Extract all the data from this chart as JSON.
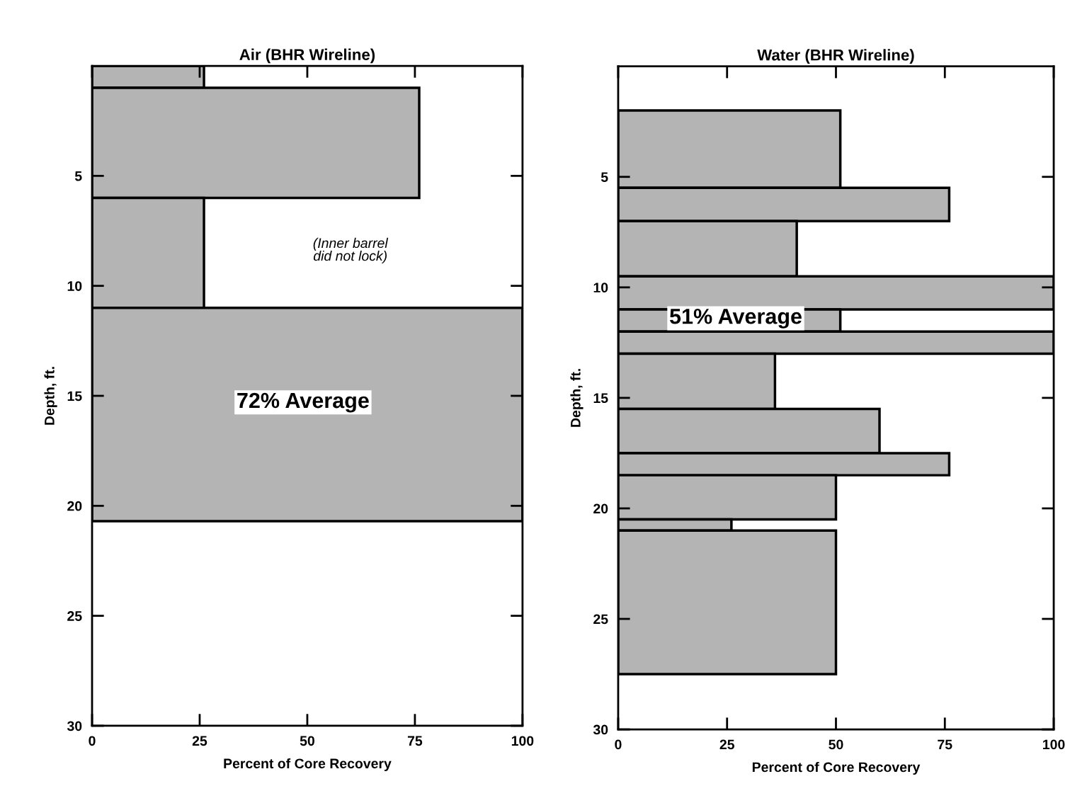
{
  "chart_data": [
    {
      "type": "histogram",
      "orientation": "horizontal",
      "title": "Air (BHR Wireline)",
      "xlabel": "Percent of Core Recovery",
      "ylabel": "Depth, ft.",
      "bins": [
        0,
        1,
        6,
        11,
        20.7
      ],
      "values": [
        26,
        76,
        26,
        100
      ],
      "color": "#b4b4b4",
      "xlim": [
        0,
        100
      ],
      "xticks": [
        0,
        25,
        50,
        75,
        100
      ],
      "ylim": [
        30,
        0
      ],
      "yticks": [
        5,
        10,
        15,
        20,
        25,
        30
      ],
      "grid": false,
      "legend": false,
      "annotations": [
        "(Inner barrel\ndid not lock)",
        "72% Average"
      ]
    },
    {
      "type": "histogram",
      "orientation": "horizontal",
      "title": "Water (BHR Wireline)",
      "xlabel": "Percent of Core Recovery",
      "ylabel": "Depth, ft.",
      "bins": [
        2,
        5.5,
        7,
        9.5,
        11,
        12,
        13,
        15.5,
        17.5,
        18.5,
        20.5,
        21,
        27.5
      ],
      "values": [
        51,
        76,
        41,
        100,
        51,
        100,
        36,
        60,
        76,
        50,
        26,
        50
      ],
      "color": "#b4b4b4",
      "xlim": [
        0,
        100
      ],
      "xticks": [
        0,
        25,
        50,
        75,
        100
      ],
      "ylim": [
        30,
        0
      ],
      "yticks": [
        5,
        10,
        15,
        20,
        25,
        30
      ],
      "grid": false,
      "legend": false,
      "annotations": [
        "51% Average"
      ]
    }
  ]
}
